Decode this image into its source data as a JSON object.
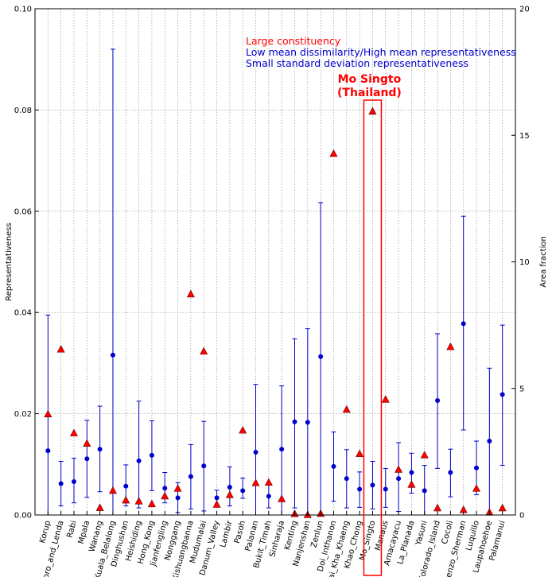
{
  "chart_data": {
    "type": "scatter",
    "ylabel": "Representativeness",
    "ylabel_right": "Area fraction",
    "ylim": [
      0,
      0.1
    ],
    "ylim_right": [
      0,
      20
    ],
    "yticks": [
      "0.00",
      "0.02",
      "0.04",
      "0.06",
      "0.08",
      "0.10"
    ],
    "yticks_right": [
      "0",
      "5",
      "10",
      "15",
      "20"
    ],
    "grid": true,
    "categories": [
      "Korup",
      "Edoro_and_Lenda",
      "Rabi",
      "Mpala",
      "Wanang",
      "Kuala_Belalong",
      "Dinghushan",
      "Heishiding",
      "Hong_Kong",
      "Jianfengling",
      "Nonggang",
      "Xishuangbanna",
      "Mudumalai",
      "Danum_Valley",
      "Lambir",
      "Pasoh",
      "Palanan",
      "Bukit_Timah",
      "Sinharaja",
      "Kenting",
      "Nanjenshan",
      "Zenlun",
      "Doi_Inthanon",
      "Huai_Kha_Khaeng",
      "Khao_Chong",
      "Mo_Singto",
      "Manaus",
      "Amacayacu",
      "La_Planada",
      "Yasuni",
      "Colorado_Island",
      "Cocoli",
      "Lorenzo_Sherman",
      "Luquillo",
      "Laupahoehoe",
      "Palamanui"
    ],
    "series": [
      {
        "marker": "circle",
        "color": "#0000cc",
        "values": [
          0.0127,
          0.0062,
          0.0066,
          0.0111,
          0.013,
          0.0316,
          0.0057,
          0.0107,
          0.0118,
          0.0053,
          0.0034,
          0.0076,
          0.0097,
          0.0034,
          0.0055,
          0.0048,
          0.0124,
          0.0037,
          0.013,
          0.0184,
          0.0183,
          0.0313,
          0.0096,
          0.0072,
          0.0051,
          0.0059,
          0.0051,
          0.0072,
          0.0084,
          0.0048,
          0.0226,
          0.0084,
          0.0378,
          0.0093,
          0.0146,
          0.0238
        ],
        "err_low": [
          0.0,
          0.0018,
          0.0024,
          0.0035,
          0.0046,
          0.0,
          0.0018,
          0.0014,
          0.0048,
          0.0024,
          0.0005,
          0.0012,
          0.0008,
          0.0019,
          0.0018,
          0.0033,
          0.0,
          0.0014,
          0.0,
          0.0014,
          0.0,
          0.0,
          0.0027,
          0.0014,
          0.0015,
          0.0012,
          0.0015,
          0.0007,
          0.0043,
          0.0,
          0.0092,
          0.0036,
          0.0168,
          0.004,
          0.0,
          0.0098
        ],
        "err_high": [
          0.0395,
          0.0106,
          0.0112,
          0.0187,
          0.0215,
          0.092,
          0.0099,
          0.0225,
          0.0186,
          0.0084,
          0.0064,
          0.0139,
          0.0185,
          0.0049,
          0.0095,
          0.0073,
          0.0258,
          0.006,
          0.0255,
          0.0348,
          0.0368,
          0.0617,
          0.0164,
          0.0129,
          0.0085,
          0.0106,
          0.0092,
          0.0143,
          0.0122,
          0.0098,
          0.0358,
          0.013,
          0.059,
          0.0146,
          0.029,
          0.0375
        ]
      },
      {
        "marker": "triangle",
        "color": "#ff0000",
        "axis": "right",
        "values": [
          3.98,
          6.54,
          3.23,
          2.82,
          0.28,
          0.96,
          0.58,
          0.54,
          0.43,
          0.74,
          1.04,
          8.72,
          6.46,
          0.41,
          0.79,
          3.34,
          1.26,
          1.28,
          0.63,
          0.04,
          0.0,
          0.05,
          14.27,
          4.16,
          2.41,
          15.94,
          4.56,
          1.79,
          1.2,
          2.36,
          0.27,
          6.64,
          0.2,
          1.04,
          0.1,
          0.27
        ]
      }
    ],
    "legend": [
      {
        "label": "Large constituency",
        "color": "#ff0000"
      },
      {
        "label": "Low mean dissimilarity/High mean representativeness",
        "color": "#0000cc"
      },
      {
        "label": "Small standard deviation representativeness",
        "color": "#0000cc"
      }
    ],
    "highlight": {
      "category": "Mo_Singto",
      "label_line1": "Mo Singto",
      "label_line2": "(Thailand)",
      "color": "#ff0000"
    }
  }
}
